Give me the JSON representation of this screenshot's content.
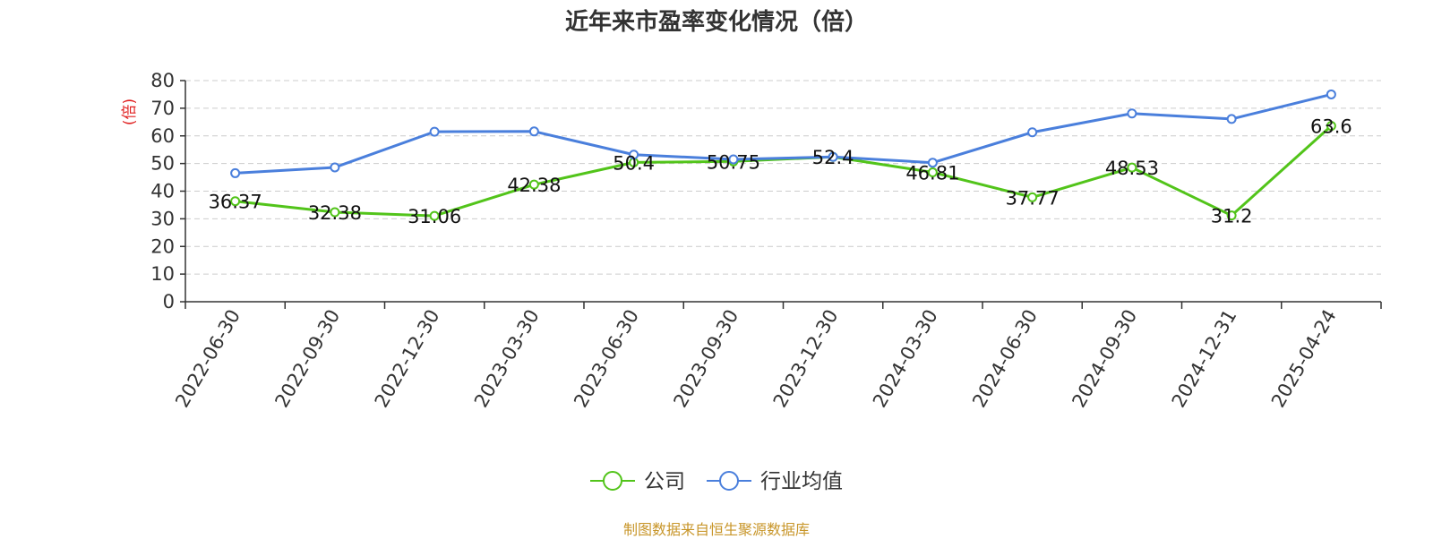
{
  "chart_data": {
    "type": "line",
    "title": "近年来市盈率变化情况（倍）",
    "ylabel": "(倍)",
    "ylim": [
      0,
      80
    ],
    "yticks": [
      0,
      10,
      20,
      30,
      40,
      50,
      60,
      70,
      80
    ],
    "grid": true,
    "legend_position": "bottom-center",
    "categories": [
      "2022-06-30",
      "2022-09-30",
      "2022-12-30",
      "2023-03-30",
      "2023-06-30",
      "2023-09-30",
      "2023-12-30",
      "2024-03-30",
      "2024-06-30",
      "2024-09-30",
      "2024-12-31",
      "2025-04-24"
    ],
    "series": [
      {
        "name": "公司",
        "color": "#52c41a",
        "show_labels": true,
        "values": [
          36.37,
          32.38,
          31.06,
          42.38,
          50.4,
          50.75,
          52.4,
          46.81,
          37.77,
          48.53,
          31.2,
          63.6
        ]
      },
      {
        "name": "行业均值",
        "color": "#4a7fdc",
        "show_labels": false,
        "values": [
          46.5,
          48.6,
          61.5,
          61.6,
          53.2,
          51.5,
          52.4,
          50.3,
          61.3,
          68.1,
          66.1,
          75.0
        ]
      }
    ]
  },
  "footer": "制图数据来自恒生聚源数据库"
}
